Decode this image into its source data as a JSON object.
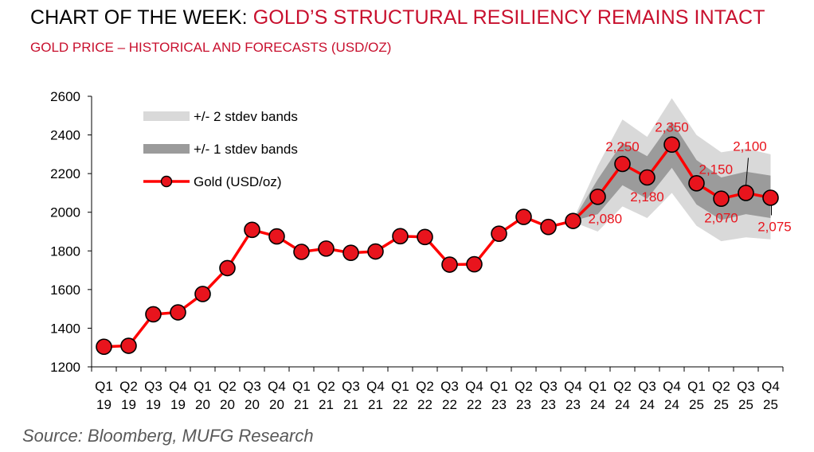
{
  "header": {
    "title_prefix": "CHART OF THE WEEK: ",
    "title_highlight": "GOLD’S STRUCTURAL RESILIENCY REMAINS INTACT",
    "subtitle": "GOLD PRICE – HISTORICAL AND FORECASTS (USD/OZ)"
  },
  "source": "Source: Bloomberg,  MUFG Research",
  "colors": {
    "gold_line": "#ff0000",
    "marker_fill": "#e8141d",
    "band2": "#d9d9d9",
    "band1": "#9b9b9b",
    "label": "#e8141d"
  },
  "chart_data": {
    "type": "line",
    "title": "GOLD PRICE – HISTORICAL AND FORECASTS (USD/OZ)",
    "xlabel": "",
    "ylabel": "",
    "ylim": [
      1200,
      2600
    ],
    "yticks": [
      "1200",
      "1400",
      "1600",
      "1800",
      "2000",
      "2200",
      "2400",
      "2600"
    ],
    "categories": [
      {
        "q": "Q1",
        "y": "19"
      },
      {
        "q": "Q2",
        "y": "19"
      },
      {
        "q": "Q3",
        "y": "19"
      },
      {
        "q": "Q4",
        "y": "19"
      },
      {
        "q": "Q1",
        "y": "20"
      },
      {
        "q": "Q2",
        "y": "20"
      },
      {
        "q": "Q3",
        "y": "20"
      },
      {
        "q": "Q4",
        "y": "20"
      },
      {
        "q": "Q1",
        "y": "21"
      },
      {
        "q": "Q2",
        "y": "21"
      },
      {
        "q": "Q3",
        "y": "21"
      },
      {
        "q": "Q4",
        "y": "21"
      },
      {
        "q": "Q1",
        "y": "22"
      },
      {
        "q": "Q2",
        "y": "22"
      },
      {
        "q": "Q3",
        "y": "22"
      },
      {
        "q": "Q4",
        "y": "22"
      },
      {
        "q": "Q1",
        "y": "23"
      },
      {
        "q": "Q2",
        "y": "23"
      },
      {
        "q": "Q3",
        "y": "23"
      },
      {
        "q": "Q4",
        "y": "23"
      },
      {
        "q": "Q1",
        "y": "24"
      },
      {
        "q": "Q2",
        "y": "24"
      },
      {
        "q": "Q3",
        "y": "24"
      },
      {
        "q": "Q4",
        "y": "24"
      },
      {
        "q": "Q1",
        "y": "25"
      },
      {
        "q": "Q2",
        "y": "25"
      },
      {
        "q": "Q3",
        "y": "25"
      },
      {
        "q": "Q4",
        "y": "25"
      }
    ],
    "series": [
      {
        "name": "Gold (USD/oz)",
        "values": [
          1304,
          1309,
          1472,
          1482,
          1577,
          1711,
          1909,
          1875,
          1795,
          1812,
          1790,
          1797,
          1876,
          1872,
          1729,
          1731,
          1889,
          1976,
          1924,
          1955,
          2080,
          2250,
          2180,
          2350,
          2150,
          2070,
          2100,
          2075
        ]
      }
    ],
    "bands": {
      "start_index": 19,
      "stdev2": [
        {
          "lo": 1950,
          "hi": 1960
        },
        {
          "lo": 1900,
          "hi": 2240
        },
        {
          "lo": 2030,
          "hi": 2480
        },
        {
          "lo": 1970,
          "hi": 2390
        },
        {
          "lo": 2100,
          "hi": 2590
        },
        {
          "lo": 1930,
          "hi": 2400
        },
        {
          "lo": 1850,
          "hi": 2310
        },
        {
          "lo": 1870,
          "hi": 2330
        },
        {
          "lo": 1860,
          "hi": 2300
        }
      ],
      "stdev1": [
        {
          "lo": 1955,
          "hi": 1958
        },
        {
          "lo": 1990,
          "hi": 2170
        },
        {
          "lo": 2140,
          "hi": 2360
        },
        {
          "lo": 2070,
          "hi": 2290
        },
        {
          "lo": 2230,
          "hi": 2470
        },
        {
          "lo": 2040,
          "hi": 2270
        },
        {
          "lo": 1960,
          "hi": 2180
        },
        {
          "lo": 1990,
          "hi": 2210
        },
        {
          "lo": 1970,
          "hi": 2190
        }
      ]
    },
    "data_labels": [
      {
        "index": 20,
        "text": "2,080",
        "pos": "below-right"
      },
      {
        "index": 21,
        "text": "2,250",
        "pos": "above"
      },
      {
        "index": 22,
        "text": "2,180",
        "pos": "below"
      },
      {
        "index": 23,
        "text": "2,350",
        "pos": "above"
      },
      {
        "index": 24,
        "text": "2,150",
        "pos": "above-right"
      },
      {
        "index": 25,
        "text": "2,070",
        "pos": "below"
      },
      {
        "index": 26,
        "text": "2,100",
        "pos": "above-leader"
      },
      {
        "index": 27,
        "text": "2,075",
        "pos": "below-leader"
      }
    ],
    "legend": {
      "placement": "top-left",
      "items": [
        {
          "key": "band2",
          "label": "+/- 2 stdev bands"
        },
        {
          "key": "band1",
          "label": "+/- 1 stdev bands"
        },
        {
          "key": "line",
          "label": "Gold (USD/oz)"
        }
      ]
    }
  }
}
